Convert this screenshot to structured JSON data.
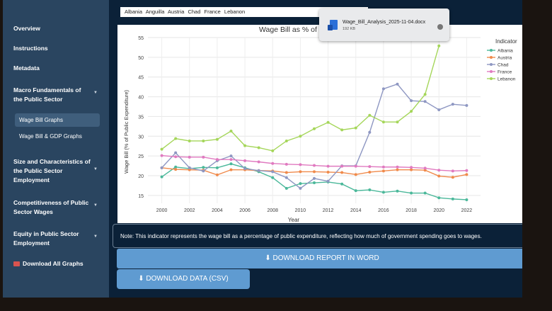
{
  "sidebar": {
    "overview": "Overview",
    "instructions": "Instructions",
    "metadata": "Metadata",
    "macro": [
      "Macro Fundamentals of",
      "the Public Sector"
    ],
    "wage_bill_graphs": "Wage Bill Graphs",
    "wage_bill_gdp": "Wage Bill & GDP Graphs",
    "size": [
      "Size and Characteristics of",
      "the Public Sector",
      "Employment"
    ],
    "competitiveness": [
      "Competitiveness of Public",
      "Sector Wages"
    ],
    "equity": [
      "Equity in Public Sector",
      "Employment"
    ],
    "download_all": "Download All Graphs"
  },
  "countries_bar": "Albania  Anguilla  Austria  Chad  France  Lebanon",
  "toast": {
    "filename": "Wage_Bill_Analysis_2025-11-04.docx",
    "size": "192 KB"
  },
  "note": "Note: This indicator represents the wage bill as a percentage of public expenditure, reflecting how much of government spending goes to wages.",
  "buttons": {
    "word": "DOWNLOAD REPORT IN WORD",
    "csv": "DOWNLOAD DATA (CSV)"
  },
  "chart_data": {
    "type": "line",
    "title": "Wage Bill as % of Pub",
    "xlabel": "Year",
    "ylabel": "Wage Bill (% of Public Expenditure)",
    "xlim": [
      1999,
      2023
    ],
    "ylim": [
      13,
      55
    ],
    "xticks": [
      2000,
      2002,
      2004,
      2006,
      2008,
      2010,
      2012,
      2014,
      2016,
      2018,
      2020,
      2022
    ],
    "yticks": [
      15,
      20,
      25,
      30,
      35,
      40,
      45,
      50,
      55
    ],
    "legend_title": "Indicator",
    "legend_position": "right",
    "grid": true,
    "series": [
      {
        "name": "Albania",
        "color": "#4bb89a",
        "x": [
          2000,
          2001,
          2002,
          2003,
          2004,
          2005,
          2006,
          2007,
          2008,
          2009,
          2010,
          2011,
          2012,
          2013,
          2014,
          2015,
          2016,
          2017,
          2018,
          2019,
          2020,
          2021,
          2022
        ],
        "y": [
          19.7,
          22.2,
          21.8,
          22.1,
          22.0,
          23.0,
          22.0,
          21.0,
          19.5,
          16.8,
          18.0,
          18.2,
          18.4,
          17.9,
          16.2,
          16.4,
          15.8,
          16.1,
          15.6,
          15.6,
          14.4,
          14.1,
          13.9
        ]
      },
      {
        "name": "Austria",
        "color": "#f08a4b",
        "x": [
          2000,
          2001,
          2002,
          2003,
          2004,
          2005,
          2006,
          2007,
          2008,
          2009,
          2010,
          2011,
          2012,
          2013,
          2014,
          2015,
          2016,
          2017,
          2018,
          2019,
          2020,
          2021,
          2022
        ],
        "y": [
          22.0,
          21.6,
          21.5,
          21.4,
          20.2,
          21.5,
          21.5,
          21.3,
          21.2,
          20.8,
          21.0,
          21.0,
          20.9,
          20.8,
          20.3,
          20.9,
          21.2,
          21.5,
          21.5,
          21.4,
          19.9,
          19.6,
          20.3
        ]
      },
      {
        "name": "Chad",
        "color": "#8e97c2",
        "x": [
          2000,
          2001,
          2002,
          2003,
          2004,
          2005,
          2006,
          2007,
          2008,
          2009,
          2010,
          2011,
          2012,
          2013,
          2014,
          2015,
          2016,
          2017,
          2018,
          2019,
          2020,
          2021,
          2022
        ],
        "y": [
          22.0,
          25.8,
          22.0,
          21.2,
          23.8,
          25.0,
          21.8,
          21.3,
          21.0,
          19.5,
          16.8,
          19.3,
          18.6,
          22.5,
          22.5,
          31.0,
          42.0,
          43.2,
          39.0,
          38.8,
          36.7,
          38.1,
          37.8
        ]
      },
      {
        "name": "France",
        "color": "#e07ac0",
        "x": [
          2000,
          2001,
          2002,
          2003,
          2004,
          2005,
          2006,
          2007,
          2008,
          2009,
          2010,
          2011,
          2012,
          2013,
          2014,
          2015,
          2016,
          2017,
          2018,
          2019,
          2020,
          2021,
          2022
        ],
        "y": [
          25.1,
          24.8,
          24.7,
          24.7,
          24.1,
          24.1,
          23.8,
          23.5,
          23.1,
          22.9,
          22.8,
          22.6,
          22.4,
          22.4,
          22.4,
          22.3,
          22.2,
          22.2,
          22.1,
          21.9,
          21.4,
          21.2,
          21.3
        ]
      },
      {
        "name": "Lebanon",
        "color": "#a5d65a",
        "x": [
          2000,
          2001,
          2002,
          2003,
          2004,
          2005,
          2006,
          2007,
          2008,
          2009,
          2010,
          2011,
          2012,
          2013,
          2014,
          2015,
          2016,
          2017,
          2018,
          2019,
          2020
        ],
        "y": [
          26.7,
          29.4,
          28.8,
          28.8,
          29.2,
          31.3,
          27.6,
          27.1,
          26.3,
          28.8,
          30.0,
          31.9,
          33.5,
          31.6,
          32.1,
          35.3,
          33.6,
          33.6,
          36.3,
          40.6,
          52.9
        ]
      }
    ]
  }
}
